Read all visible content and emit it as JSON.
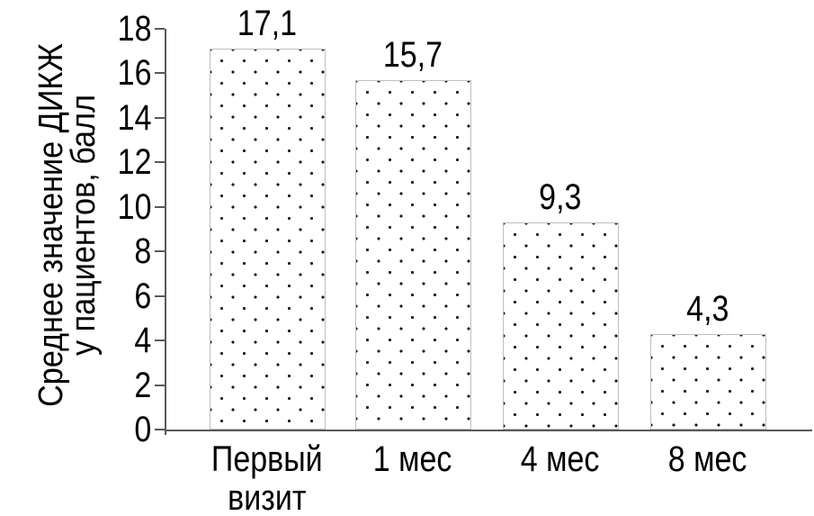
{
  "chart_data": {
    "type": "bar",
    "title": "",
    "categories": [
      "Первый визит",
      "1 мес",
      "4 мес",
      "8 мес"
    ],
    "category_lines": [
      "Первый\nвизит",
      "1 мес",
      "4 мес",
      "8 мес"
    ],
    "values": [
      17.1,
      15.7,
      9.3,
      4.3
    ],
    "value_labels": [
      "17,1",
      "15,7",
      "9,3",
      "4,3"
    ],
    "ylabel_line1": "Среднее значение ДИКЖ",
    "ylabel_line2": "у пациентов, балл",
    "ylabel": "Среднее значение ДИКЖ у пациентов, балл",
    "xlabel": "",
    "ylim": [
      0,
      18
    ],
    "yticks": [
      0,
      2,
      4,
      6,
      8,
      10,
      12,
      14,
      16,
      18
    ],
    "grid": false,
    "legend": "none",
    "bar_fill_style": "white with black polka-dot pattern",
    "colors": {
      "background": "#ffffff",
      "text": "#000000",
      "axis": "#595959",
      "bar_border": "#bfbfbf",
      "bar_dot": "#1a1a1a"
    }
  }
}
